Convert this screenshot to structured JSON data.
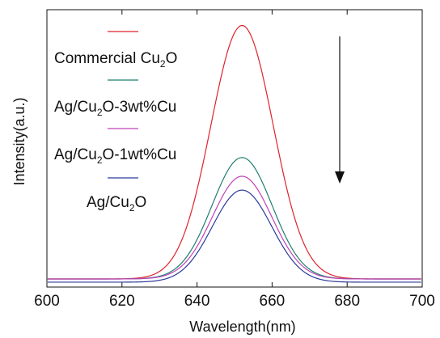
{
  "chart_data": {
    "type": "line",
    "title": "",
    "xlabel": "Wavelength",
    "xlabel_unit": "(nm)",
    "ylabel": "Intensity(a.u.)",
    "xlim": [
      600,
      700
    ],
    "ylim": [
      0,
      1.06
    ],
    "xticks": [
      600,
      620,
      640,
      660,
      680,
      700
    ],
    "y_tick_labels": false,
    "grid": false,
    "legend_position": "top-left",
    "annotation": "downward arrow indicating decreasing intensity",
    "series": [
      {
        "name": "Commercial Cu2O",
        "label_main": "Commercial Cu",
        "label_sub": "2",
        "label_tail": "O",
        "color": "#e0232b",
        "peak_x": 652,
        "peak_y": 0.95,
        "sigma": 8.3,
        "baseline": 0.0
      },
      {
        "name": "Ag/Cu2O-3wt%Cu",
        "label_main": "Ag/Cu",
        "label_sub": "2",
        "label_tail": "O-3wt%Cu",
        "color": "#1f7f6e",
        "peak_x": 652,
        "peak_y": 0.455,
        "sigma": 8.0,
        "baseline": 0.0
      },
      {
        "name": "Ag/Cu2O-1wt%Cu",
        "label_main": "Ag/Cu",
        "label_sub": "2",
        "label_tail": "O-1wt%Cu",
        "color": "#c042b8",
        "peak_x": 652,
        "peak_y": 0.385,
        "sigma": 7.9,
        "baseline": 0.0
      },
      {
        "name": "Ag/Cu2O",
        "label_main": "Ag/Cu",
        "label_sub": "2",
        "label_tail": "O",
        "color": "#2b3a9a",
        "peak_x": 652,
        "peak_y": 0.345,
        "sigma": 7.9,
        "baseline": -0.012
      }
    ]
  }
}
